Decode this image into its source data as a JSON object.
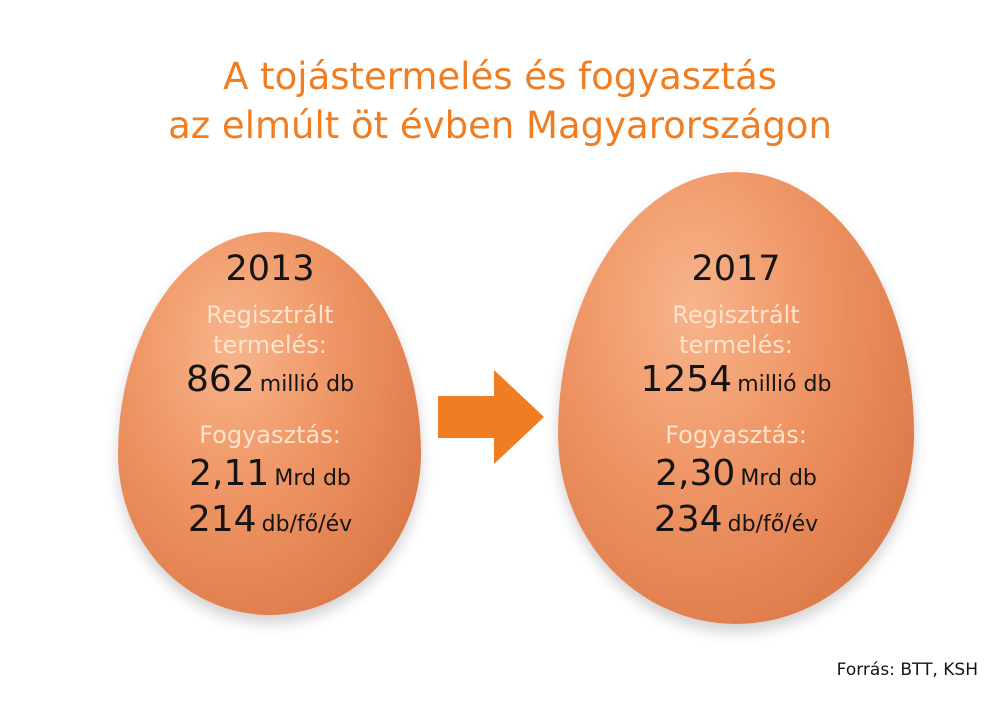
{
  "title": {
    "line1": "A tojástermelés és fogyasztás",
    "line2": "az elmúlt öt évben Magyarországon"
  },
  "eggs": [
    {
      "year": "2013",
      "production_label_1": "Regisztrált",
      "production_label_2": "termelés:",
      "production_value": "862",
      "production_unit": "millió db",
      "consumption_label": "Fogyasztás:",
      "consumption_total": "2,11",
      "consumption_total_unit": "Mrd db",
      "consumption_per_capita": "214",
      "consumption_per_capita_unit": "db/fő/év"
    },
    {
      "year": "2017",
      "production_label_1": "Regisztrált",
      "production_label_2": "termelés:",
      "production_value": "1254",
      "production_unit": "millió db",
      "consumption_label": "Fogyasztás:",
      "consumption_total": "2,30",
      "consumption_total_unit": "Mrd db",
      "consumption_per_capita": "234",
      "consumption_per_capita_unit": "db/fő/év"
    }
  ],
  "source": "Forrás: BTT, KSH",
  "colors": {
    "accent": "#f07d21",
    "egg": "#f09868",
    "label": "#fde2cc",
    "text": "#141414"
  },
  "icons": {
    "arrow": "right-arrow-icon"
  }
}
